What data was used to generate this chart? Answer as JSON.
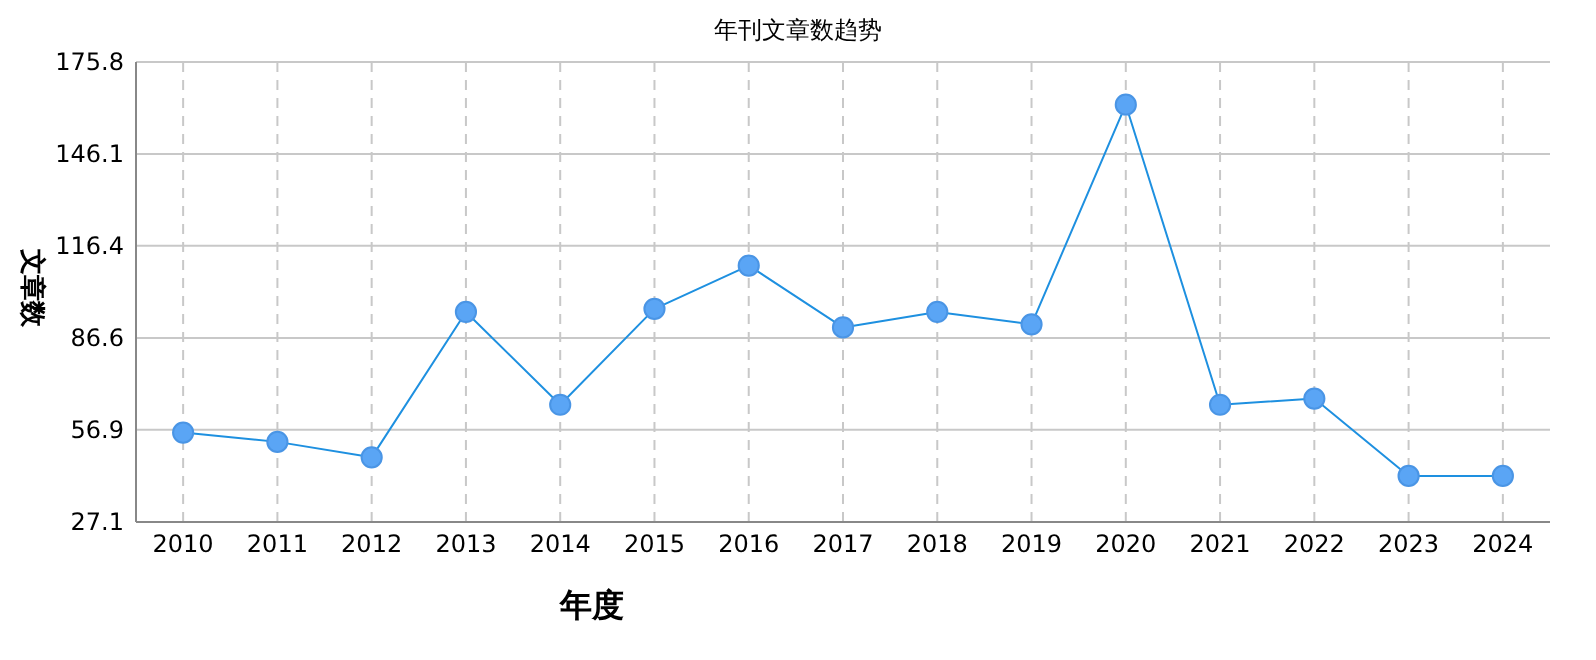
{
  "chart_data": {
    "type": "line",
    "title": "年刊文章数趋势",
    "xlabel": "年度",
    "ylabel": "文章数",
    "categories": [
      "2010",
      "2011",
      "2012",
      "2013",
      "2014",
      "2015",
      "2016",
      "2017",
      "2018",
      "2019",
      "2020",
      "2021",
      "2022",
      "2023",
      "2024"
    ],
    "series": [
      {
        "color": "#1e90e0",
        "values": [
          56,
          53,
          48,
          95,
          65,
          96,
          110,
          90,
          95,
          91,
          162,
          65,
          67,
          42,
          42
        ]
      }
    ],
    "ylim": [
      27.1,
      175.8
    ],
    "yticks": [
      27.1,
      56.9,
      86.6,
      116.4,
      146.1,
      175.8
    ],
    "grid": true,
    "marker": "circle",
    "line_style": "solid"
  }
}
